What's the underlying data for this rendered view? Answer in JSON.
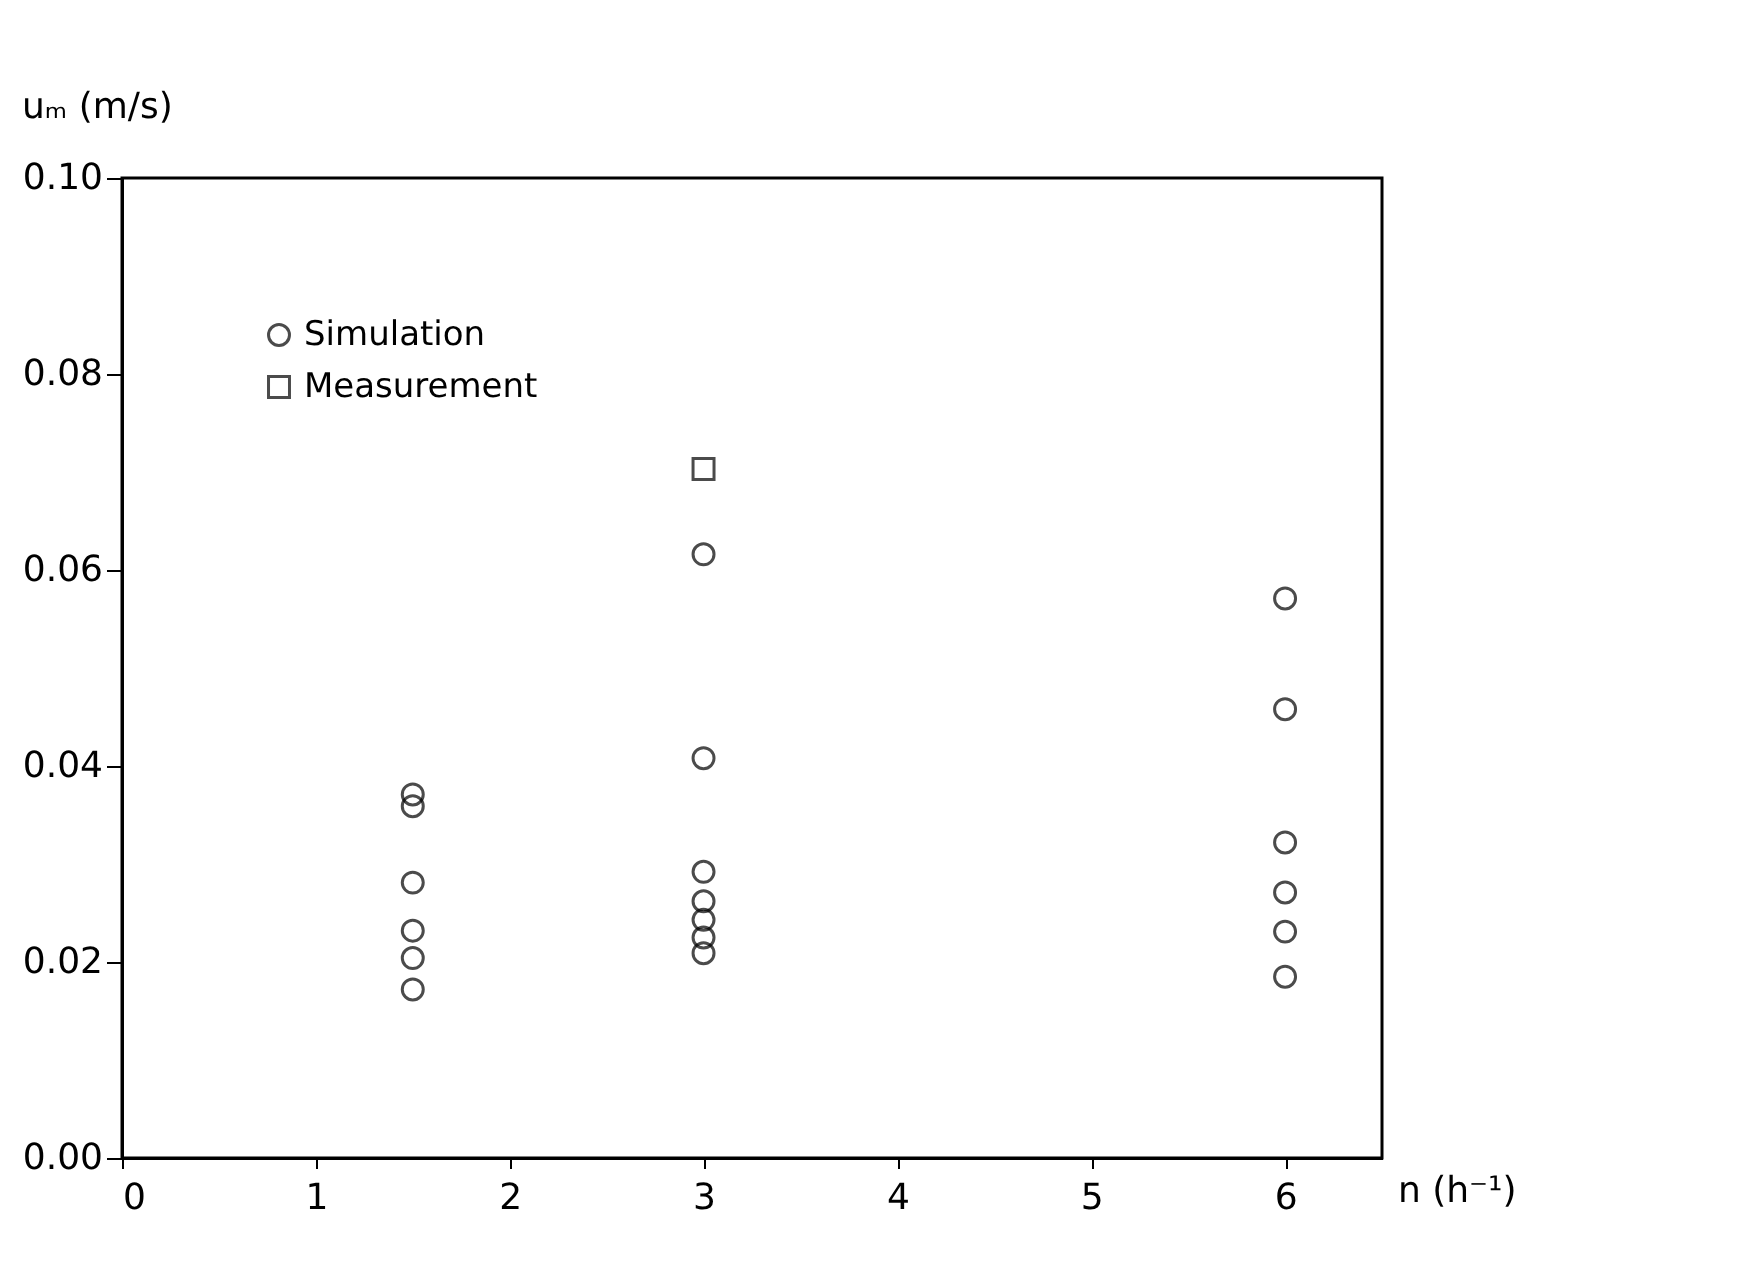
{
  "chart_data": {
    "type": "scatter",
    "xlabel": "n (h⁻¹)",
    "ylabel": "uₘ (m/s)",
    "xlim": [
      0,
      6.5
    ],
    "xticks": [
      0,
      1,
      2,
      3,
      4,
      5,
      6
    ],
    "ylim": [
      0,
      0.1
    ],
    "yticks": [
      {
        "value": 0,
        "label": "0.00"
      },
      0.02,
      0.04,
      0.06,
      0.08,
      {
        "value": 0.1,
        "label": "0.10"
      }
    ],
    "grid": false,
    "legend": "top left",
    "series": [
      {
        "name": "Simulation",
        "color": "#000000",
        "marker": "circle",
        "x": [
          1.5,
          1.5,
          1.5,
          1.5,
          1.5,
          1.5,
          3,
          3,
          3,
          3,
          3,
          3,
          3,
          6,
          6,
          6,
          6,
          6,
          6
        ],
        "values": [
          0.0371,
          0.0359,
          0.0281,
          0.0232,
          0.0204,
          0.0172,
          0.0616,
          0.0408,
          0.0292,
          0.0262,
          0.0243,
          0.0225,
          0.0209,
          0.0571,
          0.0458,
          0.0322,
          0.0271,
          0.0231,
          0.0185
        ]
      },
      {
        "name": "Measurement",
        "color": "#000000",
        "marker": "square",
        "x": [
          3
        ],
        "values": [
          0.0703
        ]
      }
    ]
  }
}
